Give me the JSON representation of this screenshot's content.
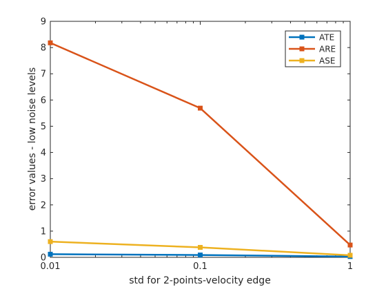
{
  "chart_data": {
    "type": "line",
    "x_scale": "log",
    "x": [
      0.01,
      0.1,
      1
    ],
    "x_ticks": [
      "0.01",
      "0.1",
      "1"
    ],
    "xlim": [
      0.01,
      1
    ],
    "ylim": [
      0,
      9
    ],
    "y_ticks": [
      "0",
      "1",
      "2",
      "3",
      "4",
      "5",
      "6",
      "7",
      "8",
      "9"
    ],
    "xlabel": "std for 2-points-velocity edge",
    "ylabel": "error values - low noise levels",
    "grid": false,
    "legend_position": "top-right",
    "series": [
      {
        "name": "ATE",
        "color": "#0072BD",
        "values": [
          0.12,
          0.09,
          0.03
        ]
      },
      {
        "name": "ARE",
        "color": "#D95319",
        "values": [
          8.18,
          5.69,
          0.47
        ]
      },
      {
        "name": "ASE",
        "color": "#EDB120",
        "values": [
          0.6,
          0.38,
          0.08
        ]
      }
    ]
  }
}
